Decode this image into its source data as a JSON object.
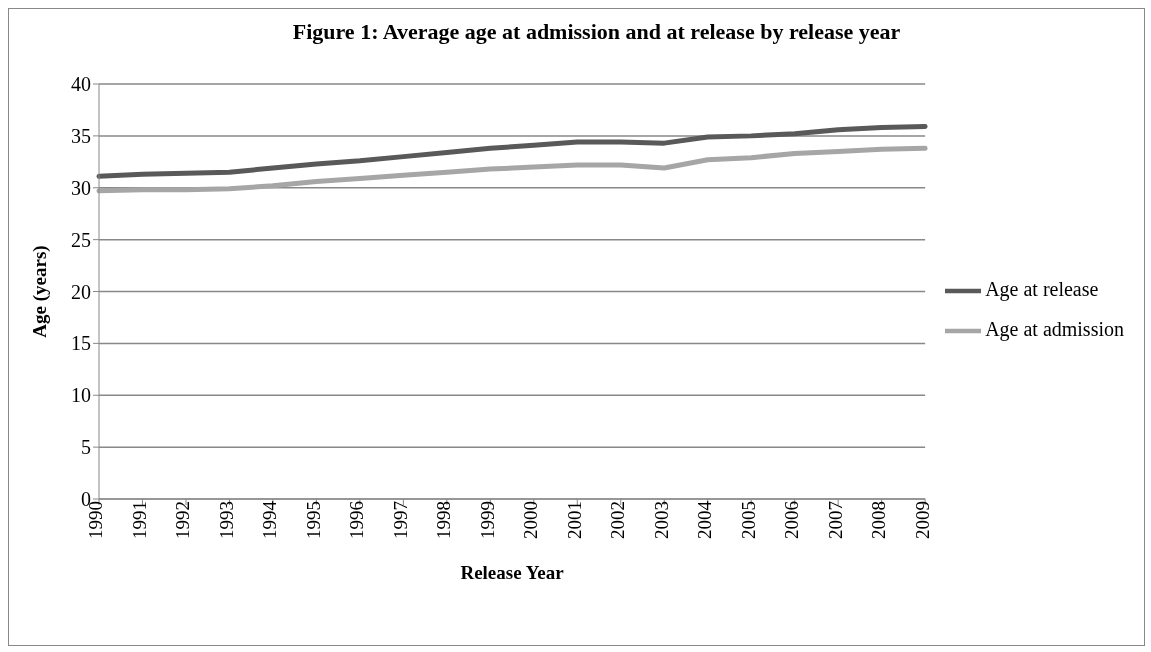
{
  "chart_data": {
    "type": "line",
    "title": "Figure 1: Average age at admission and at release by release year",
    "xlabel": "Release Year",
    "ylabel": "Age (years)",
    "categories": [
      "1990",
      "1991",
      "1992",
      "1993",
      "1994",
      "1995",
      "1996",
      "1997",
      "1998",
      "1999",
      "2000",
      "2001",
      "2002",
      "2003",
      "2004",
      "2005",
      "2006",
      "2007",
      "2008",
      "2009"
    ],
    "series": [
      {
        "name": "Age at release",
        "color": "#595959",
        "values": [
          31.1,
          31.3,
          31.4,
          31.5,
          31.9,
          32.3,
          32.6,
          33.0,
          33.4,
          33.8,
          34.1,
          34.4,
          34.4,
          34.3,
          34.9,
          35.0,
          35.2,
          35.6,
          35.8,
          35.9
        ]
      },
      {
        "name": "Age at admission",
        "color": "#a6a6a6",
        "values": [
          29.7,
          29.8,
          29.8,
          29.9,
          30.2,
          30.6,
          30.9,
          31.2,
          31.5,
          31.8,
          32.0,
          32.2,
          32.2,
          31.9,
          32.7,
          32.9,
          33.3,
          33.5,
          33.7,
          33.8
        ]
      }
    ],
    "ylim": [
      0,
      40
    ],
    "yticks": [
      0,
      5,
      10,
      15,
      20,
      25,
      30,
      35,
      40
    ],
    "grid": "y",
    "legend": "right",
    "marker": "none",
    "line_style": "solid"
  }
}
